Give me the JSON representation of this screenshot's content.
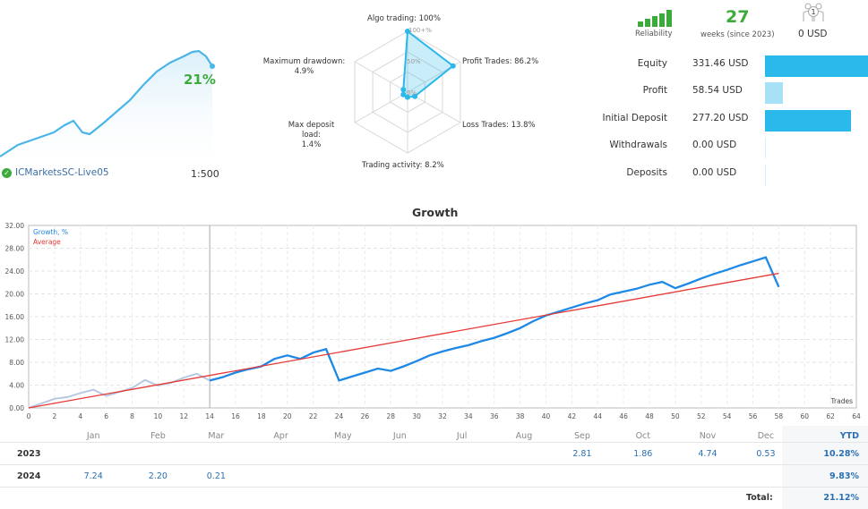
{
  "mini_chart": {
    "growth_pct": "21%",
    "broker": "ICMarketsSC-Live05",
    "leverage": "1:500",
    "line_color": "#4ab6e8"
  },
  "radar": {
    "axes": [
      {
        "label": "Algo trading: 100%",
        "value": 100
      },
      {
        "label": "Profit Trades: 86.2%",
        "value": 86.2
      },
      {
        "label": "Loss Trades: 13.8%",
        "value": 13.8
      },
      {
        "label": "Trading activity: 8.2%",
        "value": 8.2
      },
      {
        "label": "Max deposit load:",
        "sub": "1.4%",
        "value": 1.4
      },
      {
        "label": "Maximum drawdown:",
        "sub": "4.9%",
        "value": 4.9
      }
    ],
    "ring_labels": [
      "100+%",
      "50%",
      "0%"
    ]
  },
  "stats": {
    "reliability_label": "Reliability",
    "weeks_value": "27",
    "weeks_label": "weeks (since 2023)",
    "subscribers_count": "1",
    "subscribers_value": "0 USD"
  },
  "financials": [
    {
      "label": "Equity",
      "value": "331.46 USD",
      "bar_pct": 100,
      "color": "#2bb8ea"
    },
    {
      "label": "Profit",
      "value": "58.54 USD",
      "bar_pct": 17.7,
      "color": "#a8e0f5"
    },
    {
      "label": "Initial Deposit",
      "value": "277.20 USD",
      "bar_pct": 83.6,
      "color": "#2bb8ea"
    },
    {
      "label": "Withdrawals",
      "value": "0.00 USD",
      "bar_pct": 0,
      "color": "#2bb8ea"
    },
    {
      "label": "Deposits",
      "value": "0.00 USD",
      "bar_pct": 0,
      "color": "#2bb8ea"
    }
  ],
  "chart_data": {
    "type": "line",
    "title": "Growth",
    "xlabel": "Trades",
    "ylabel": "",
    "xlim": [
      0,
      64
    ],
    "ylim": [
      0,
      32
    ],
    "x_ticks": [
      0,
      2,
      4,
      6,
      8,
      10,
      12,
      14,
      16,
      18,
      20,
      22,
      24,
      26,
      28,
      30,
      32,
      34,
      36,
      38,
      40,
      42,
      44,
      46,
      48,
      50,
      52,
      54,
      56,
      58,
      60,
      62,
      64
    ],
    "y_ticks": [
      "0.00",
      "4.00",
      "8.00",
      "12.00",
      "16.00",
      "20.00",
      "24.00",
      "28.00",
      "32.00"
    ],
    "legend": [
      "Growth, %",
      "Average"
    ],
    "legend_position": "top-left",
    "grid": true,
    "month_labels": [
      "Jan",
      "Feb",
      "Mar",
      "Apr",
      "May",
      "Jun",
      "Jul",
      "Aug",
      "Sep",
      "Oct",
      "Nov",
      "Dec"
    ],
    "month_positions": [
      5,
      10,
      14.5,
      19.5,
      24.3,
      28.7,
      33.5,
      38.3,
      42.8,
      47.5,
      52.5,
      57
    ],
    "series": [
      {
        "name": "Growth, %",
        "color_before_divider": "#b7c9e2",
        "color": "#1e88e5",
        "x": [
          0,
          1,
          2,
          3,
          4,
          5,
          6,
          7,
          8,
          9,
          10,
          11,
          12,
          13,
          14,
          15,
          16,
          17,
          18,
          19,
          20,
          21,
          22,
          23,
          24,
          25,
          26,
          27,
          28,
          29,
          30,
          31,
          32,
          33,
          34,
          35,
          36,
          37,
          38,
          39,
          40,
          41,
          42,
          43,
          44,
          45,
          46,
          47,
          48,
          49,
          50,
          51,
          52,
          53,
          54,
          55,
          56,
          57,
          58
        ],
        "y": [
          0,
          0.8,
          1.6,
          1.9,
          2.6,
          3.2,
          2.1,
          2.8,
          3.5,
          4.9,
          3.9,
          4.4,
          5.3,
          6.0,
          4.8,
          5.4,
          6.2,
          6.8,
          7.3,
          8.6,
          9.2,
          8.6,
          9.7,
          10.3,
          4.8,
          5.5,
          6.2,
          6.9,
          6.5,
          7.3,
          8.2,
          9.2,
          9.9,
          10.5,
          11.0,
          11.7,
          12.3,
          13.1,
          14.0,
          15.2,
          16.2,
          16.9,
          17.6,
          18.3,
          18.9,
          19.9,
          20.4,
          20.9,
          21.6,
          22.1,
          21.0,
          21.8,
          22.7,
          23.5,
          24.2,
          25.0,
          25.7,
          26.4,
          21.2
        ]
      },
      {
        "name": "Average",
        "color": "#e53935",
        "x": [
          0,
          58
        ],
        "y": [
          0,
          23.6
        ]
      }
    ],
    "divider_x": 14
  },
  "returns_table": {
    "months": [
      "Jan",
      "Feb",
      "Mar",
      "Apr",
      "May",
      "Jun",
      "Jul",
      "Aug",
      "Sep",
      "Oct",
      "Nov",
      "Dec"
    ],
    "ytd_label": "YTD",
    "rows": [
      {
        "year": "2023",
        "values": [
          "",
          "",
          "",
          "",
          "",
          "",
          "",
          "",
          "2.81",
          "1.86",
          "4.74",
          "0.53"
        ],
        "ytd": "10.28%"
      },
      {
        "year": "2024",
        "values": [
          "7.24",
          "2.20",
          "0.21",
          "",
          "",
          "",
          "",
          "",
          "",
          "",
          "",
          ""
        ],
        "ytd": "9.83%"
      }
    ],
    "total_label": "Total:",
    "total_value": "21.12%"
  }
}
